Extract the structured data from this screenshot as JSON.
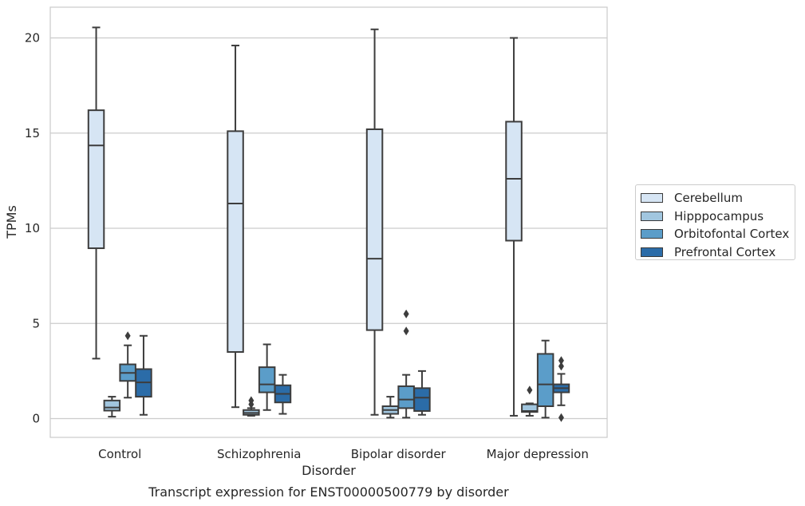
{
  "chart_data": {
    "type": "box",
    "title": "Transcript expression for ENST00000500779 by disorder",
    "xlabel": "Disorder",
    "ylabel": "TPMs",
    "ylim": [
      -0.9,
      21.6
    ],
    "yticks": [
      0,
      5,
      10,
      15,
      20
    ],
    "grid": "horizontal",
    "legend_position": "right",
    "categories": [
      "Control",
      "Schizophrenia",
      "Bipolar disorder",
      "Major depression"
    ],
    "series": [
      {
        "name": "Cerebellum",
        "color": "#d6e5f4",
        "boxes": [
          {
            "whisker_low": 3.15,
            "q1": 8.95,
            "median": 14.35,
            "q3": 16.2,
            "whisker_high": 20.55,
            "outliers": []
          },
          {
            "whisker_low": 0.6,
            "q1": 3.5,
            "median": 11.3,
            "q3": 15.1,
            "whisker_high": 19.6,
            "outliers": []
          },
          {
            "whisker_low": 0.2,
            "q1": 4.65,
            "median": 8.4,
            "q3": 15.2,
            "whisker_high": 20.45,
            "outliers": []
          },
          {
            "whisker_low": 0.15,
            "q1": 9.35,
            "median": 12.6,
            "q3": 15.6,
            "whisker_high": 20.0,
            "outliers": []
          }
        ]
      },
      {
        "name": "Hipppocampus",
        "color": "#a1c6df",
        "boxes": [
          {
            "whisker_low": 0.1,
            "q1": 0.42,
            "median": 0.58,
            "q3": 0.95,
            "whisker_high": 1.15,
            "outliers": []
          },
          {
            "whisker_low": 0.15,
            "q1": 0.2,
            "median": 0.3,
            "q3": 0.45,
            "whisker_high": 0.55,
            "outliers": [
              0.75,
              0.95
            ]
          },
          {
            "whisker_low": 0.05,
            "q1": 0.25,
            "median": 0.45,
            "q3": 0.65,
            "whisker_high": 1.15,
            "outliers": []
          },
          {
            "whisker_low": 0.15,
            "q1": 0.35,
            "median": 0.4,
            "q3": 0.75,
            "whisker_high": 0.8,
            "outliers": [
              1.5
            ]
          }
        ]
      },
      {
        "name": "Orbitofontal Cortex",
        "color": "#5b9dc9",
        "boxes": [
          {
            "whisker_low": 1.1,
            "q1": 1.98,
            "median": 2.4,
            "q3": 2.85,
            "whisker_high": 3.85,
            "outliers": [
              4.35
            ]
          },
          {
            "whisker_low": 0.45,
            "q1": 1.38,
            "median": 1.8,
            "q3": 2.7,
            "whisker_high": 3.9,
            "outliers": []
          },
          {
            "whisker_low": 0.05,
            "q1": 0.55,
            "median": 1.0,
            "q3": 1.7,
            "whisker_high": 2.3,
            "outliers": [
              4.6,
              5.5
            ]
          },
          {
            "whisker_low": 0.05,
            "q1": 0.65,
            "median": 1.8,
            "q3": 3.4,
            "whisker_high": 4.1,
            "outliers": []
          }
        ]
      },
      {
        "name": "Prefrontal Cortex",
        "color": "#2b6ca8",
        "boxes": [
          {
            "whisker_low": 0.2,
            "q1": 1.15,
            "median": 1.9,
            "q3": 2.6,
            "whisker_high": 4.35,
            "outliers": []
          },
          {
            "whisker_low": 0.25,
            "q1": 0.85,
            "median": 1.3,
            "q3": 1.75,
            "whisker_high": 2.3,
            "outliers": []
          },
          {
            "whisker_low": 0.2,
            "q1": 0.4,
            "median": 1.1,
            "q3": 1.6,
            "whisker_high": 2.5,
            "outliers": []
          },
          {
            "whisker_low": 0.7,
            "q1": 1.38,
            "median": 1.6,
            "q3": 1.8,
            "whisker_high": 2.35,
            "outliers": [
              0.05,
              2.75,
              3.05
            ]
          }
        ]
      }
    ]
  }
}
